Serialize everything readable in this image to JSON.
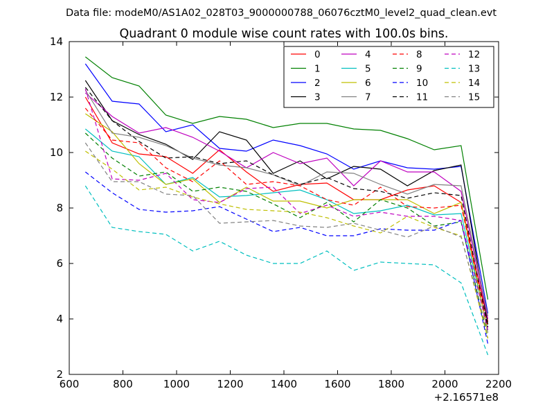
{
  "chart_data": {
    "type": "line",
    "suptitle": "Data file: modeM0/AS1A02_028T03_9000000788_06076cztM0_level2_quad_clean.evt",
    "title": "Quadrant 0 module wise count rates with 100.0s bins.",
    "xlabel": "",
    "ylabel": "",
    "x_offset_label": "+2.16571e8",
    "xlim": [
      600,
      2200
    ],
    "ylim": [
      2,
      14
    ],
    "xticks": [
      600,
      800,
      1000,
      1200,
      1400,
      1600,
      1800,
      2000,
      2200
    ],
    "yticks": [
      2,
      4,
      6,
      8,
      10,
      12,
      14
    ],
    "legend_position": "top-right",
    "x": [
      660,
      760,
      860,
      960,
      1060,
      1160,
      1260,
      1360,
      1460,
      1560,
      1660,
      1760,
      1860,
      1960,
      2060,
      2160
    ],
    "series": [
      {
        "name": "0",
        "color": "#ff0000",
        "dash": "solid",
        "values": [
          12.0,
          10.35,
          9.95,
          9.85,
          9.25,
          10.1,
          9.3,
          8.6,
          8.85,
          8.9,
          8.3,
          8.3,
          8.65,
          8.8,
          8.2,
          3.9
        ]
      },
      {
        "name": "1",
        "color": "#008000",
        "dash": "solid",
        "values": [
          13.45,
          12.7,
          12.4,
          11.35,
          11.05,
          11.3,
          11.2,
          10.9,
          11.05,
          11.05,
          10.85,
          10.8,
          10.5,
          10.1,
          10.25,
          4.7
        ]
      },
      {
        "name": "2",
        "color": "#0000ff",
        "dash": "solid",
        "values": [
          13.2,
          11.85,
          11.75,
          10.75,
          11.0,
          10.15,
          10.05,
          10.45,
          10.25,
          9.95,
          9.4,
          9.7,
          9.45,
          9.4,
          9.5,
          4.2
        ]
      },
      {
        "name": "3",
        "color": "#000000",
        "dash": "solid",
        "values": [
          12.6,
          11.15,
          10.65,
          10.3,
          9.75,
          10.75,
          10.45,
          9.25,
          9.7,
          9.05,
          9.5,
          9.4,
          8.8,
          9.35,
          9.55,
          3.8
        ]
      },
      {
        "name": "4",
        "color": "#bf00bf",
        "dash": "solid",
        "values": [
          12.15,
          11.3,
          10.7,
          10.9,
          10.55,
          10.05,
          9.45,
          10.0,
          9.6,
          9.8,
          8.8,
          9.7,
          9.3,
          9.3,
          8.6,
          4.0
        ]
      },
      {
        "name": "5",
        "color": "#00bfbf",
        "dash": "solid",
        "values": [
          10.85,
          10.05,
          9.85,
          8.85,
          9.1,
          8.4,
          8.45,
          8.55,
          8.65,
          8.3,
          7.8,
          7.9,
          8.1,
          7.75,
          7.8,
          3.6
        ]
      },
      {
        "name": "6",
        "color": "#bfbf00",
        "dash": "solid",
        "values": [
          11.4,
          10.75,
          9.6,
          8.85,
          9.05,
          8.2,
          8.75,
          8.25,
          8.25,
          8.0,
          8.3,
          8.3,
          8.3,
          7.8,
          8.2,
          3.5
        ]
      },
      {
        "name": "7",
        "color": "#808080",
        "dash": "solid",
        "values": [
          12.25,
          10.7,
          10.55,
          10.25,
          9.8,
          9.55,
          9.45,
          9.2,
          8.8,
          9.3,
          9.25,
          8.85,
          8.5,
          8.85,
          8.8,
          4.1
        ]
      },
      {
        "name": "8",
        "color": "#ff0000",
        "dash": "dashed",
        "values": [
          11.6,
          10.45,
          10.35,
          9.45,
          8.95,
          9.7,
          8.85,
          8.95,
          8.8,
          8.3,
          8.1,
          8.75,
          8.05,
          8.0,
          8.1,
          3.7
        ]
      },
      {
        "name": "9",
        "color": "#008000",
        "dash": "dashed",
        "values": [
          10.7,
          9.8,
          9.15,
          9.3,
          8.6,
          8.75,
          8.6,
          8.15,
          7.65,
          8.2,
          7.5,
          8.3,
          8.0,
          7.35,
          7.5,
          3.3
        ]
      },
      {
        "name": "10",
        "color": "#0000ff",
        "dash": "dashed",
        "values": [
          9.3,
          8.55,
          7.95,
          7.85,
          7.9,
          8.05,
          7.6,
          7.15,
          7.3,
          7.0,
          7.0,
          7.25,
          7.2,
          7.2,
          7.55,
          3.1
        ]
      },
      {
        "name": "11",
        "color": "#000000",
        "dash": "dashed",
        "values": [
          12.35,
          11.15,
          10.4,
          9.8,
          9.85,
          9.6,
          9.7,
          9.2,
          8.85,
          9.1,
          8.7,
          8.6,
          8.35,
          8.55,
          8.45,
          3.7
        ]
      },
      {
        "name": "12",
        "color": "#bf00bf",
        "dash": "dashed",
        "values": [
          12.3,
          9.05,
          9.0,
          9.25,
          8.3,
          8.2,
          8.7,
          8.75,
          7.8,
          8.1,
          7.7,
          7.85,
          7.7,
          7.7,
          7.55,
          3.6
        ]
      },
      {
        "name": "13",
        "color": "#00bfbf",
        "dash": "dashed",
        "values": [
          8.8,
          7.3,
          7.15,
          7.05,
          6.45,
          6.8,
          6.3,
          6.0,
          6.0,
          6.45,
          5.75,
          6.05,
          6.0,
          5.95,
          5.3,
          2.7
        ]
      },
      {
        "name": "14",
        "color": "#bfbf00",
        "dash": "dashed",
        "values": [
          10.05,
          9.4,
          8.65,
          8.75,
          8.4,
          8.15,
          7.95,
          7.9,
          7.85,
          7.65,
          7.35,
          7.1,
          7.7,
          7.3,
          7.0,
          3.3
        ]
      },
      {
        "name": "15",
        "color": "#808080",
        "dash": "dashed",
        "values": [
          10.35,
          8.95,
          8.95,
          8.5,
          8.45,
          7.45,
          7.5,
          7.55,
          7.35,
          7.3,
          7.45,
          7.2,
          6.95,
          7.35,
          6.95,
          3.5
        ]
      }
    ]
  }
}
